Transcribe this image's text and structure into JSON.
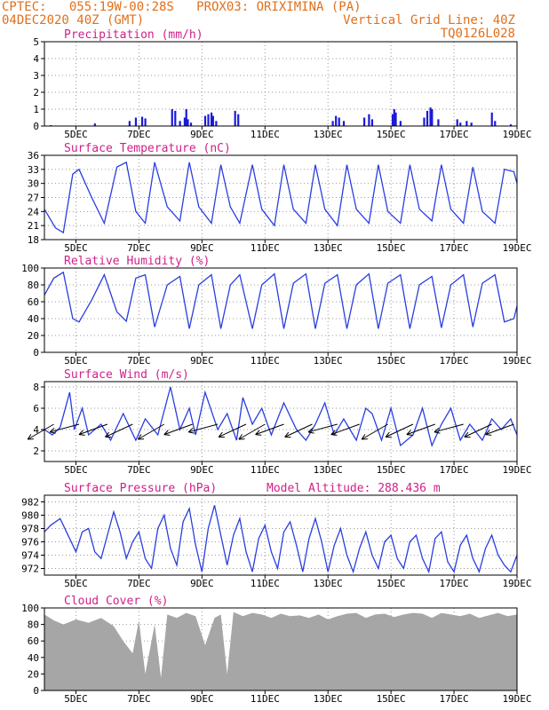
{
  "header": {
    "line1": "CPTEC:   055:19W-00:28S   PROX03: ORIXIMINA (PA)",
    "line2_left": "04DEC2020 40Z (GMT)",
    "line2_right": "Vertical Grid Line: 40Z",
    "line3_right": "TQ0126L028"
  },
  "colors": {
    "header": "#e0701c",
    "title": "#d0208a",
    "line": "#2a3ee0",
    "bar": "#1a1ad8",
    "cloud": "#a6a6a6",
    "arrow": "#000000"
  },
  "chart_data": [
    {
      "type": "bar",
      "title": "Precipitation (mm/h)",
      "x_ticks": [
        "5DEC",
        "7DEC",
        "9DEC",
        "11DEC",
        "13DEC",
        "15DEC",
        "17DEC",
        "19DEC"
      ],
      "ylim": [
        0,
        5
      ],
      "y_ticks": [
        0,
        1,
        2,
        3,
        4,
        5
      ],
      "grid": true,
      "series": [
        {
          "x": [
            4.2,
            5.6,
            6.7,
            6.9,
            7.1,
            7.2,
            8.05,
            8.15,
            8.3,
            8.45,
            8.5,
            8.55,
            8.65,
            9.1,
            9.2,
            9.3,
            9.35,
            9.45,
            10.05,
            10.15,
            13.15,
            13.25,
            13.35,
            13.5,
            14.15,
            14.3,
            14.4,
            15.05,
            15.1,
            15.15,
            15.3,
            16.05,
            16.15,
            16.25,
            16.3,
            16.5,
            17.1,
            17.2,
            17.4,
            17.55,
            18.2,
            18.3,
            18.8
          ],
          "values": [
            0.05,
            0.15,
            0.3,
            0.5,
            0.55,
            0.45,
            1.0,
            0.9,
            0.3,
            0.5,
            1.0,
            0.4,
            0.2,
            0.6,
            0.7,
            0.8,
            0.6,
            0.3,
            0.9,
            0.7,
            0.3,
            0.6,
            0.5,
            0.3,
            0.5,
            0.7,
            0.4,
            0.7,
            1.0,
            0.8,
            0.3,
            0.5,
            0.9,
            1.1,
            1.0,
            0.4,
            0.4,
            0.2,
            0.3,
            0.2,
            0.8,
            0.3,
            0.1
          ]
        }
      ]
    },
    {
      "type": "line",
      "title": "Surface Temperature (nC)",
      "x_ticks": [
        "5DEC",
        "7DEC",
        "9DEC",
        "11DEC",
        "13DEC",
        "15DEC",
        "17DEC",
        "19DEC"
      ],
      "ylim": [
        18,
        36
      ],
      "y_ticks": [
        18,
        21,
        24,
        27,
        30,
        33,
        36
      ],
      "grid": true,
      "series": [
        {
          "x": [
            4.0,
            4.35,
            4.6,
            4.9,
            5.1,
            5.5,
            5.9,
            6.3,
            6.6,
            6.9,
            7.2,
            7.5,
            7.9,
            8.3,
            8.6,
            8.9,
            9.3,
            9.6,
            9.9,
            10.2,
            10.6,
            10.9,
            11.3,
            11.6,
            11.9,
            12.3,
            12.6,
            12.9,
            13.3,
            13.6,
            13.9,
            14.3,
            14.6,
            14.9,
            15.3,
            15.6,
            15.9,
            16.3,
            16.6,
            16.9,
            17.3,
            17.6,
            17.9,
            18.3,
            18.6,
            18.9,
            19.0
          ],
          "values": [
            24.5,
            20.5,
            19.5,
            32.0,
            33.0,
            27.0,
            21.5,
            33.5,
            34.5,
            24.0,
            21.5,
            34.5,
            25.0,
            22.0,
            34.5,
            25.0,
            21.5,
            34.0,
            25.0,
            21.5,
            34.0,
            24.5,
            21.0,
            34.0,
            24.5,
            21.5,
            34.0,
            24.5,
            21.0,
            34.0,
            24.5,
            21.5,
            34.0,
            24.0,
            21.5,
            34.0,
            24.5,
            22.0,
            34.0,
            24.5,
            21.5,
            33.5,
            24.0,
            21.5,
            33.0,
            32.5,
            30.0
          ]
        }
      ]
    },
    {
      "type": "line",
      "title": "Relative Humidity (%)",
      "x_ticks": [
        "5DEC",
        "7DEC",
        "9DEC",
        "11DEC",
        "13DEC",
        "15DEC",
        "17DEC",
        "19DEC"
      ],
      "ylim": [
        0,
        100
      ],
      "y_ticks": [
        0,
        20,
        40,
        60,
        80,
        100
      ],
      "grid": true,
      "series": [
        {
          "x": [
            4.0,
            4.3,
            4.6,
            4.9,
            5.1,
            5.5,
            5.9,
            6.3,
            6.6,
            6.9,
            7.2,
            7.5,
            7.9,
            8.3,
            8.6,
            8.9,
            9.3,
            9.6,
            9.9,
            10.2,
            10.6,
            10.9,
            11.3,
            11.6,
            11.9,
            12.3,
            12.6,
            12.9,
            13.3,
            13.6,
            13.9,
            14.3,
            14.6,
            14.9,
            15.3,
            15.6,
            15.9,
            16.3,
            16.6,
            16.9,
            17.3,
            17.6,
            17.9,
            18.3,
            18.6,
            18.9,
            19.0
          ],
          "values": [
            68,
            88,
            95,
            40,
            36,
            62,
            92,
            48,
            37,
            88,
            92,
            30,
            80,
            90,
            28,
            80,
            92,
            28,
            80,
            92,
            28,
            80,
            93,
            28,
            82,
            93,
            28,
            82,
            92,
            28,
            80,
            93,
            28,
            82,
            92,
            28,
            80,
            90,
            29,
            80,
            92,
            30,
            82,
            92,
            36,
            40,
            55
          ]
        }
      ]
    },
    {
      "type": "line",
      "title": "Surface Wind (m/s)",
      "x_ticks": [
        "5DEC",
        "7DEC",
        "9DEC",
        "11DEC",
        "13DEC",
        "15DEC",
        "17DEC",
        "19DEC"
      ],
      "ylim": [
        1,
        8.5
      ],
      "y_ticks": [
        2,
        4,
        6,
        8
      ],
      "grid": true,
      "series": [
        {
          "x": [
            4.0,
            4.25,
            4.5,
            4.8,
            4.95,
            5.2,
            5.4,
            5.8,
            6.1,
            6.5,
            6.9,
            7.2,
            7.6,
            8.0,
            8.3,
            8.6,
            8.8,
            9.1,
            9.5,
            9.8,
            10.1,
            10.3,
            10.6,
            10.9,
            11.2,
            11.6,
            12.0,
            12.3,
            12.6,
            12.9,
            13.2,
            13.5,
            13.9,
            14.2,
            14.4,
            14.7,
            15.0,
            15.3,
            15.7,
            16.0,
            16.3,
            16.6,
            16.9,
            17.2,
            17.5,
            17.9,
            18.2,
            18.5,
            18.8,
            19.0
          ],
          "values": [
            4.0,
            3.5,
            4.2,
            7.5,
            4.0,
            6.0,
            3.5,
            4.5,
            3.0,
            5.5,
            3.0,
            5.0,
            3.5,
            8.0,
            4.0,
            6.0,
            3.5,
            7.5,
            4.0,
            5.5,
            3.0,
            7.0,
            4.5,
            6.0,
            3.5,
            6.5,
            4.0,
            3.0,
            4.5,
            6.5,
            3.5,
            5.0,
            3.0,
            6.0,
            5.5,
            3.0,
            6.0,
            2.5,
            3.5,
            6.0,
            2.5,
            4.5,
            6.0,
            3.0,
            4.5,
            3.0,
            5.0,
            4.0,
            5.0,
            3.5
          ]
        }
      ],
      "wind_arrows": {
        "x": [
          4.3,
          5.1,
          6.0,
          6.8,
          7.8,
          8.7,
          9.5,
          10.4,
          11.0,
          11.6,
          12.5,
          13.3,
          14.0,
          14.9,
          15.7,
          16.4,
          17.3,
          18.2,
          18.9
        ],
        "angle_deg": [
          210,
          195,
          200,
          205,
          210,
          200,
          195,
          205,
          210,
          200,
          205,
          195,
          200,
          210,
          205,
          200,
          195,
          205,
          200
        ]
      }
    },
    {
      "type": "line",
      "title": "Surface Pressure (hPa)",
      "annotation": "Model Altitude: 288.436 m",
      "x_ticks": [
        "5DEC",
        "7DEC",
        "9DEC",
        "11DEC",
        "13DEC",
        "15DEC",
        "17DEC",
        "19DEC"
      ],
      "ylim": [
        971,
        983
      ],
      "y_ticks": [
        972,
        974,
        976,
        978,
        980,
        982
      ],
      "grid": true,
      "series": [
        {
          "x": [
            4.0,
            4.2,
            4.5,
            4.8,
            5.0,
            5.2,
            5.4,
            5.6,
            5.8,
            6.0,
            6.2,
            6.4,
            6.6,
            6.8,
            7.0,
            7.2,
            7.4,
            7.6,
            7.8,
            8.0,
            8.2,
            8.4,
            8.6,
            8.8,
            9.0,
            9.2,
            9.4,
            9.6,
            9.8,
            10.0,
            10.2,
            10.4,
            10.6,
            10.8,
            11.0,
            11.2,
            11.4,
            11.6,
            11.8,
            12.0,
            12.2,
            12.4,
            12.6,
            12.8,
            13.0,
            13.2,
            13.4,
            13.6,
            13.8,
            14.0,
            14.2,
            14.4,
            14.6,
            14.8,
            15.0,
            15.2,
            15.4,
            15.6,
            15.8,
            16.0,
            16.2,
            16.4,
            16.6,
            16.8,
            17.0,
            17.2,
            17.4,
            17.6,
            17.8,
            18.0,
            18.2,
            18.4,
            18.6,
            18.8,
            19.0
          ],
          "values": [
            977.5,
            978.5,
            979.5,
            976.5,
            974.5,
            977.5,
            978.0,
            974.5,
            973.5,
            977.0,
            980.5,
            977.5,
            973.5,
            976.0,
            977.5,
            973.5,
            972.0,
            978.0,
            980.0,
            975.0,
            972.5,
            979.0,
            981.0,
            975.5,
            971.5,
            978.0,
            981.5,
            977.0,
            972.5,
            977.0,
            979.5,
            974.5,
            971.5,
            976.5,
            978.5,
            974.5,
            972.0,
            977.5,
            979.0,
            975.5,
            971.5,
            976.5,
            979.5,
            976.0,
            971.5,
            975.5,
            978.0,
            974.0,
            971.5,
            975.0,
            977.5,
            974.0,
            972.0,
            976.0,
            977.0,
            973.5,
            972.0,
            976.0,
            977.0,
            973.5,
            971.5,
            976.5,
            977.5,
            973.0,
            971.5,
            975.5,
            977.0,
            973.5,
            971.5,
            975.0,
            977.0,
            974.0,
            972.5,
            971.5,
            974.0
          ]
        }
      ]
    },
    {
      "type": "area",
      "title": "Cloud Cover (%)",
      "x_ticks": [
        "5DEC",
        "7DEC",
        "9DEC",
        "11DEC",
        "13DEC",
        "15DEC",
        "17DEC",
        "19DEC"
      ],
      "ylim": [
        0,
        100
      ],
      "y_ticks": [
        0,
        20,
        40,
        60,
        80,
        100
      ],
      "grid": true,
      "series": [
        {
          "x": [
            4.0,
            4.3,
            4.6,
            5.0,
            5.4,
            5.8,
            6.2,
            6.5,
            6.8,
            7.0,
            7.2,
            7.5,
            7.7,
            7.9,
            8.2,
            8.5,
            8.8,
            9.1,
            9.4,
            9.6,
            9.8,
            10.0,
            10.3,
            10.6,
            10.9,
            11.2,
            11.5,
            11.8,
            12.1,
            12.4,
            12.7,
            13.0,
            13.3,
            13.6,
            13.9,
            14.2,
            14.5,
            14.8,
            15.1,
            15.4,
            15.7,
            16.0,
            16.3,
            16.6,
            16.9,
            17.2,
            17.5,
            17.8,
            18.1,
            18.4,
            18.7,
            19.0
          ],
          "values": [
            92,
            85,
            80,
            86,
            82,
            88,
            78,
            60,
            45,
            85,
            20,
            80,
            15,
            92,
            88,
            94,
            90,
            55,
            88,
            92,
            20,
            95,
            90,
            94,
            92,
            88,
            93,
            90,
            91,
            88,
            92,
            86,
            90,
            93,
            94,
            88,
            92,
            93,
            89,
            92,
            94,
            93,
            88,
            94,
            92,
            90,
            93,
            88,
            91,
            94,
            90,
            92
          ]
        }
      ]
    }
  ]
}
